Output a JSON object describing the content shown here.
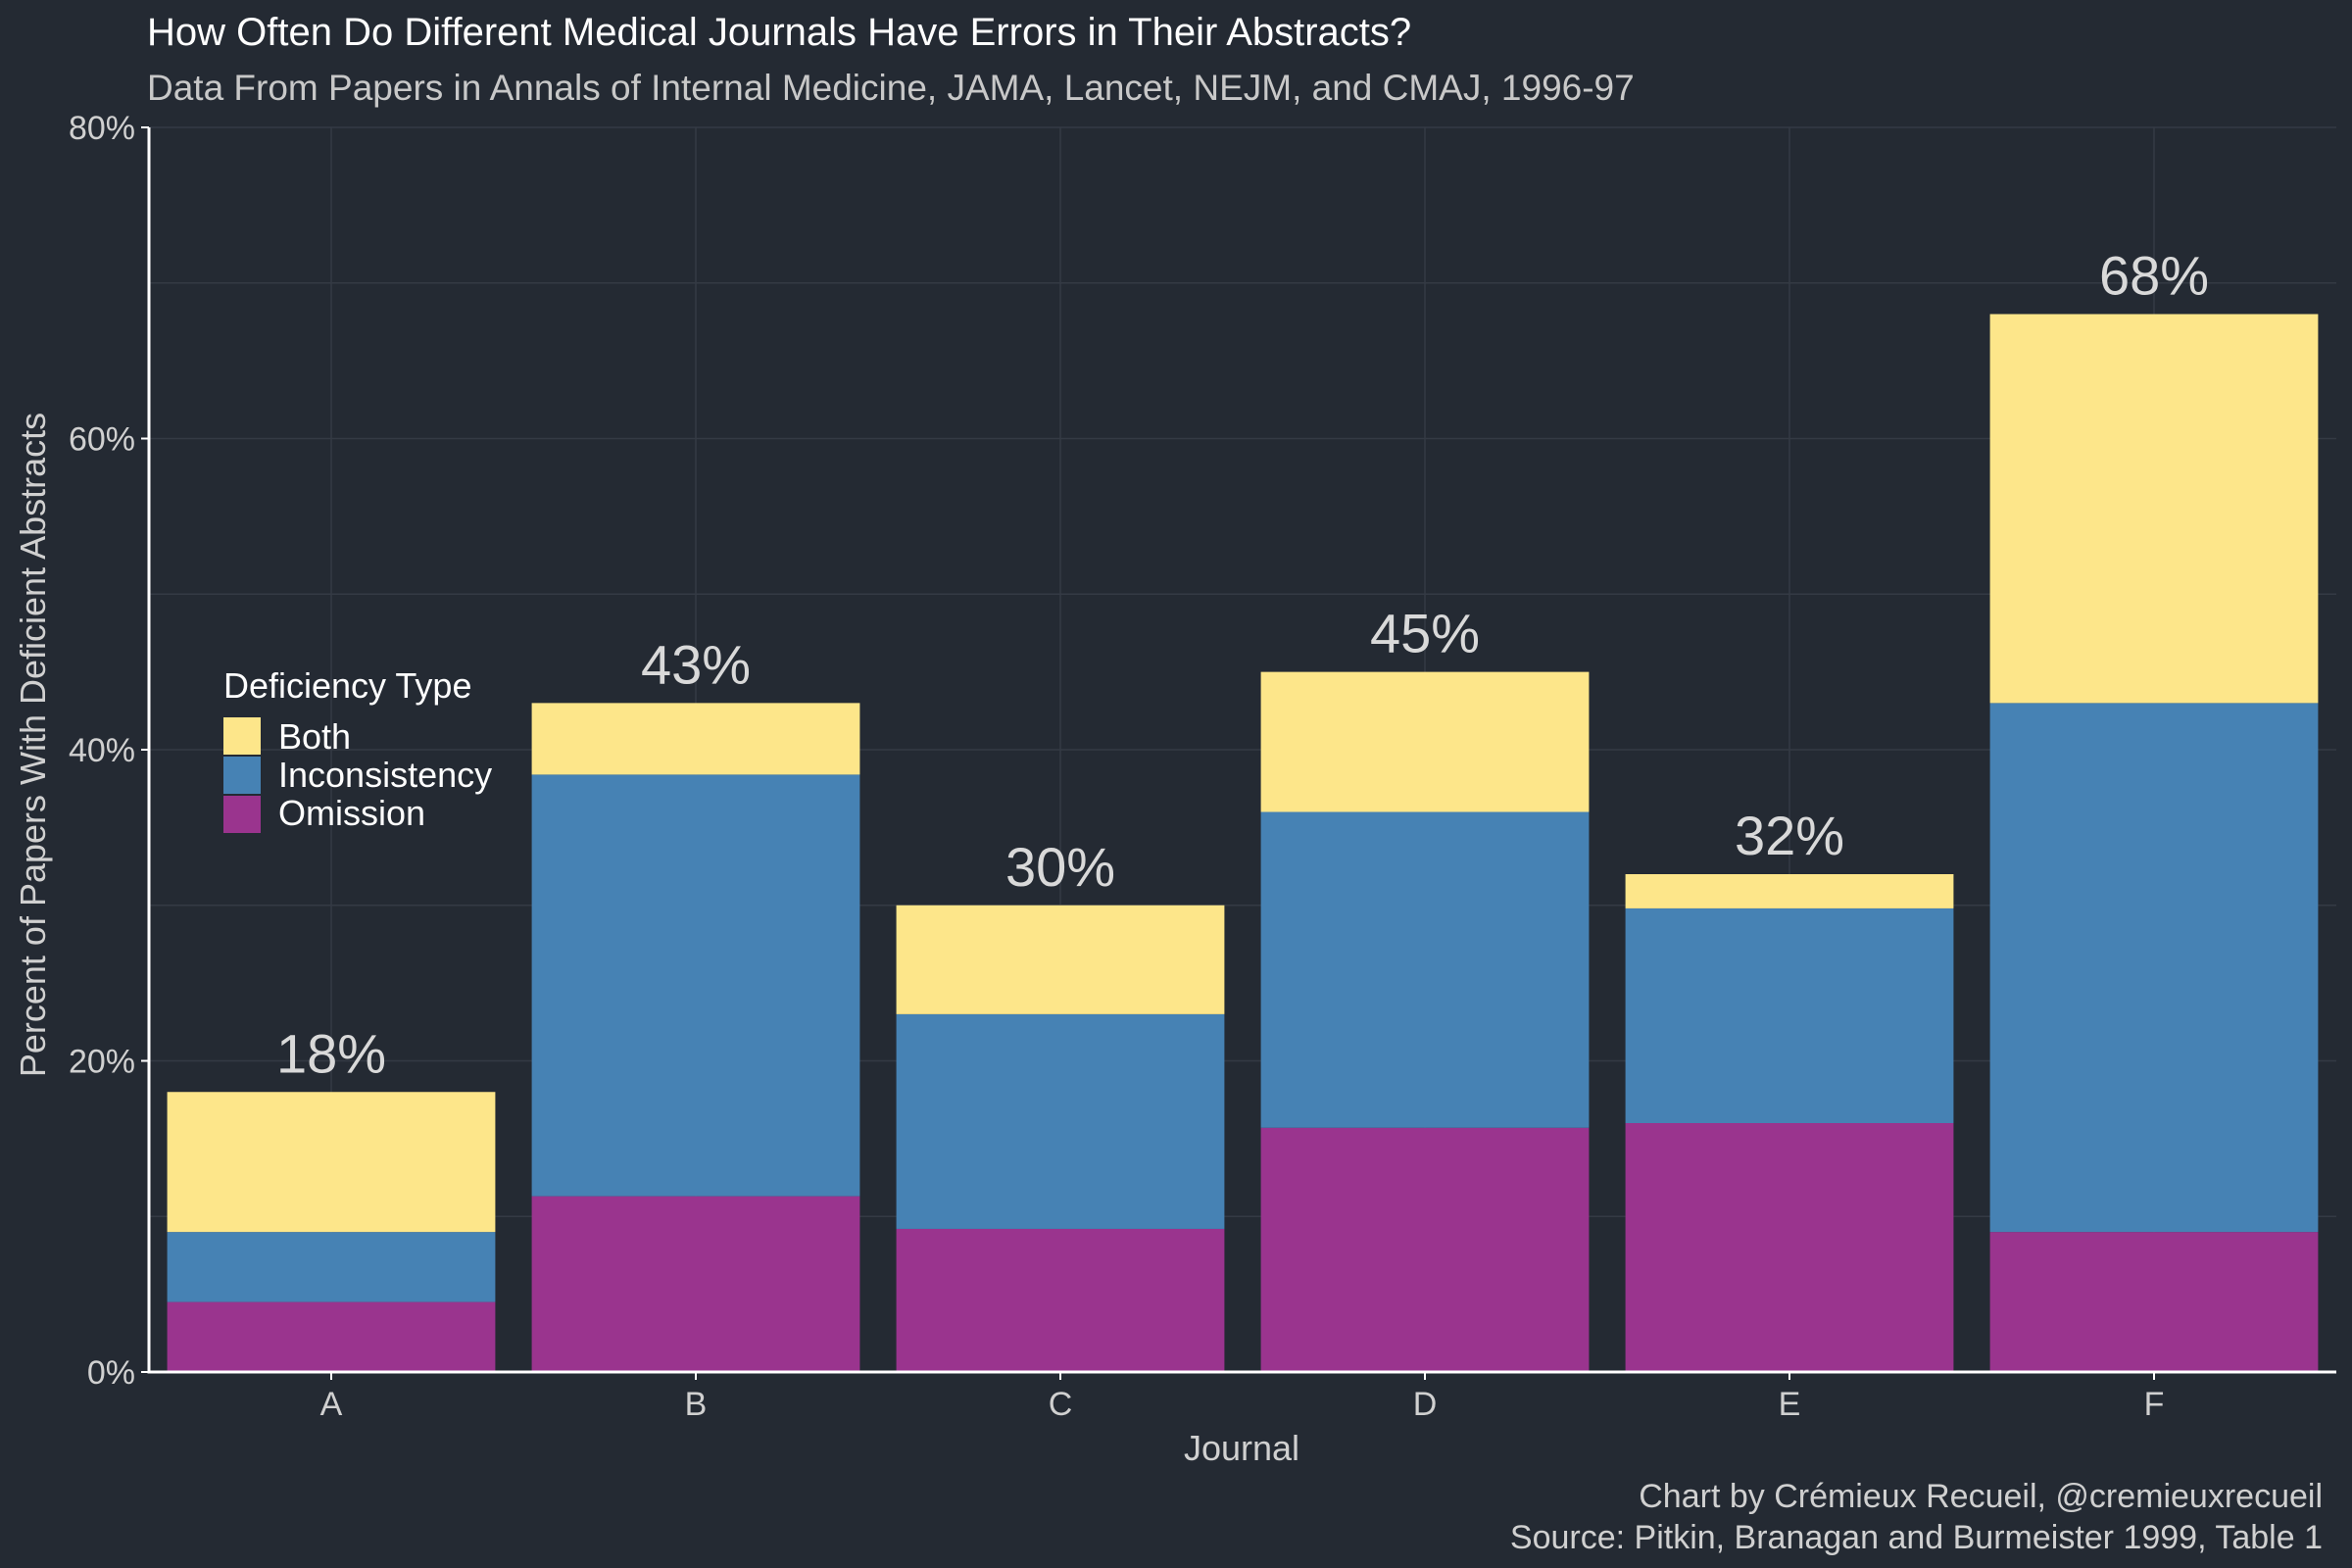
{
  "chart_data": {
    "type": "bar",
    "stacked": true,
    "title": "How Often Do Different Medical Journals Have Errors in Their Abstracts?",
    "subtitle": "Data From Papers in Annals of Internal Medicine, JAMA, Lancet, NEJM, and CMAJ, 1996-97",
    "xlabel": "Journal",
    "ylabel": "Percent of Papers With Deficient Abstracts",
    "categories": [
      "A",
      "B",
      "C",
      "D",
      "E",
      "F"
    ],
    "ylim": [
      0,
      80
    ],
    "yticks": [
      "0%",
      "20%",
      "40%",
      "60%",
      "80%"
    ],
    "ytick_values": [
      0,
      20,
      40,
      60,
      80
    ],
    "grid": true,
    "series": [
      {
        "name": "Omission",
        "color": "#9a348e",
        "values": [
          4.5,
          11.3,
          9.2,
          15.7,
          16.0,
          9.0
        ]
      },
      {
        "name": "Inconsistency",
        "color": "#4682b4",
        "values": [
          4.5,
          27.1,
          13.8,
          20.3,
          13.8,
          34.0
        ]
      },
      {
        "name": "Both",
        "color": "#fde68a",
        "values": [
          9.0,
          4.6,
          7.0,
          9.0,
          2.2,
          25.0
        ]
      }
    ],
    "totals": [
      18,
      43,
      30,
      45,
      32,
      68
    ],
    "total_labels": [
      "18%",
      "43%",
      "30%",
      "45%",
      "32%",
      "68%"
    ],
    "legend": {
      "title": "Deficiency Type",
      "position": "left",
      "entries": [
        "Both",
        "Inconsistency",
        "Omission"
      ]
    },
    "caption": [
      "Chart by Crémieux Recueil, @cremieuxrecueil",
      "Source: Pitkin, Branagan and Burmeister 1999, Table 1"
    ]
  }
}
